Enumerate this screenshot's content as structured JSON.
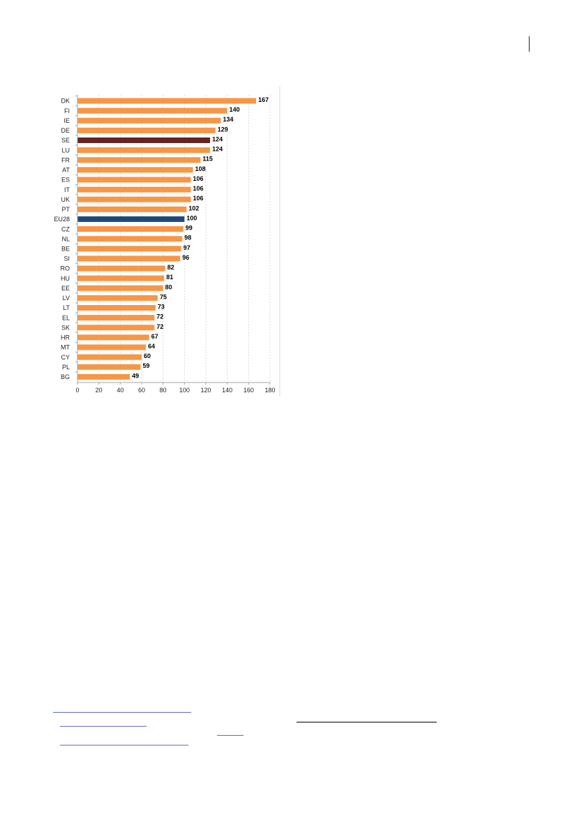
{
  "colors": {
    "default_bar": "#F79646",
    "highlight_se": "#632523",
    "highlight_eu28": "#1F497D",
    "grid": "#D9D9D9",
    "axis": "#A6A6A6"
  },
  "chart_data": {
    "type": "bar",
    "orientation": "horizontal",
    "categories": [
      "DK",
      "FI",
      "IE",
      "DE",
      "SE",
      "LU",
      "FR",
      "AT",
      "ES",
      "IT",
      "UK",
      "PT",
      "EU28",
      "CZ",
      "NL",
      "BE",
      "SI",
      "RO",
      "HU",
      "EE",
      "LV",
      "LT",
      "EL",
      "SK",
      "HR",
      "MT",
      "CY",
      "PL",
      "BG"
    ],
    "values": [
      167,
      140,
      134,
      129,
      124,
      124,
      115,
      108,
      106,
      106,
      106,
      102,
      100,
      99,
      98,
      97,
      96,
      82,
      81,
      80,
      75,
      73,
      72,
      72,
      67,
      64,
      60,
      59,
      49
    ],
    "highlights": {
      "SE": "highlight_se",
      "EU28": "highlight_eu28"
    },
    "xlim": [
      0,
      180
    ],
    "xticks": [
      0,
      20,
      40,
      60,
      80,
      100,
      120,
      140,
      160,
      180
    ],
    "title": "",
    "xlabel": "",
    "ylabel": "",
    "grid": "vertical dashed",
    "legend": "none"
  }
}
